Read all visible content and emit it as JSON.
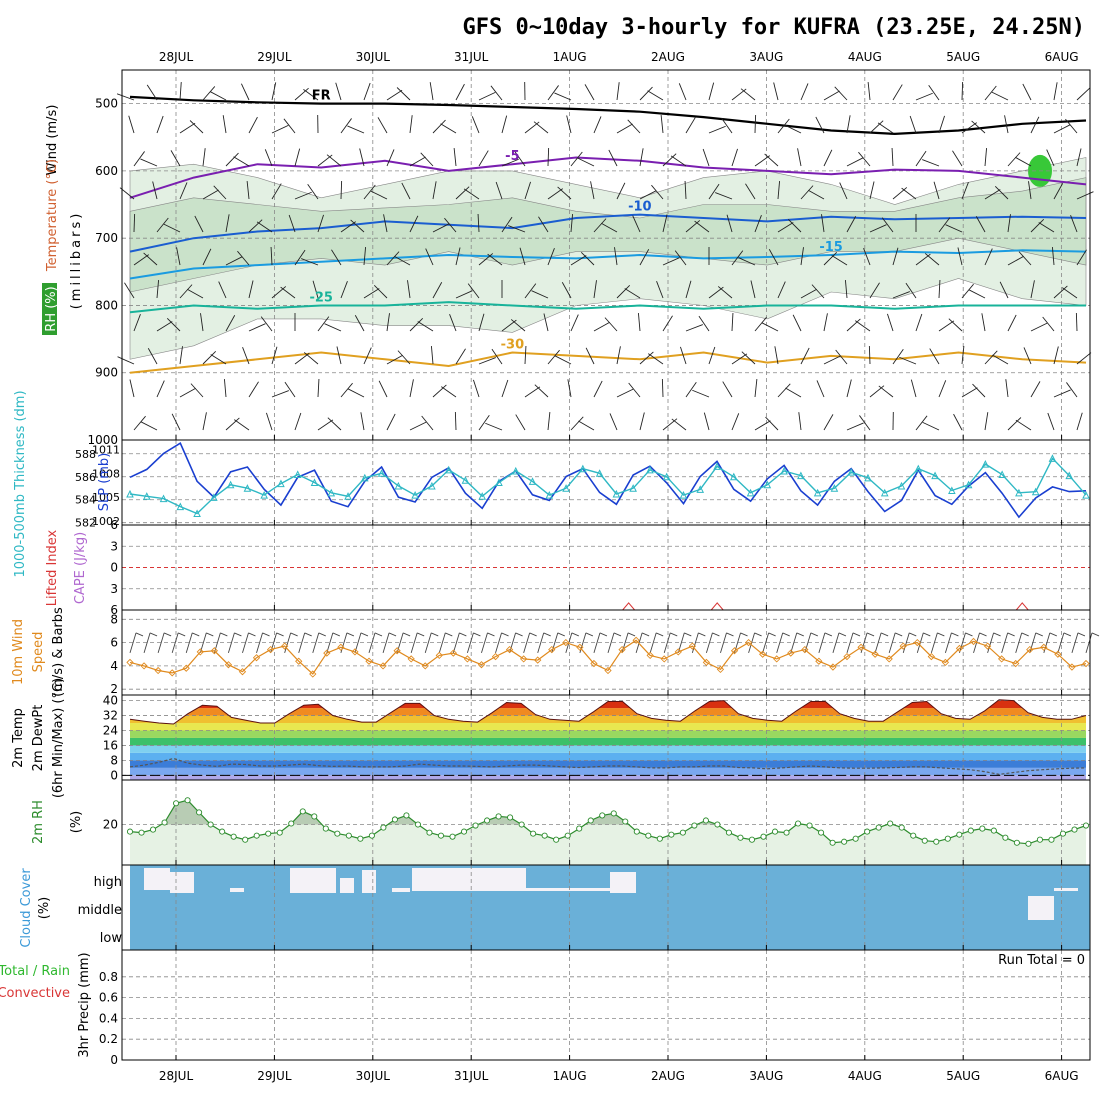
{
  "chart_data": {
    "type": "meteogram",
    "title": "GFS 0~10day 3-hourly for KUFRA (23.25E, 24.25N)",
    "dates": [
      "28JUL",
      "29JUL",
      "30JUL",
      "31JUL",
      "1AUG",
      "2AUG",
      "3AUG",
      "4AUG",
      "5AUG",
      "6AUG"
    ],
    "colors": {
      "rh_fill": "#9bc99b",
      "slp": "#1a3fd0",
      "thickness": "#2fb8c4",
      "wind10": "#e08a1e",
      "cloud": "#6ab0d8",
      "rh2m": "#2d8c2d",
      "temp_warm": "#b01010",
      "temp_cold": "#3b7dd8",
      "lifted_index": "#d93636"
    },
    "panels": {
      "upper_air": {
        "ylabels": [
          "Wind (m/s)",
          "Temperature (°C)",
          "RH (%)",
          "(millibars)"
        ],
        "yticks": [
          500,
          600,
          700,
          800,
          900,
          1000
        ],
        "ylim": [
          1000,
          450
        ],
        "isotherms": [
          {
            "label": "FR",
            "color": "#000000",
            "level_mb": [
              490,
              495,
              498,
              500,
              500,
              502,
              505,
              508,
              512,
              520,
              530,
              540,
              545,
              540,
              530,
              525
            ]
          },
          {
            "label": "-5",
            "color": "#7a1fb0",
            "level_mb": [
              640,
              610,
              590,
              595,
              585,
              600,
              590,
              580,
              585,
              595,
              600,
              605,
              598,
              600,
              610,
              620
            ]
          },
          {
            "label": "-10",
            "color": "#1a5dd0",
            "level_mb": [
              720,
              700,
              690,
              685,
              675,
              680,
              685,
              670,
              665,
              670,
              675,
              668,
              672,
              670,
              668,
              670
            ]
          },
          {
            "label": "-15",
            "color": "#1a9be0",
            "level_mb": [
              760,
              745,
              740,
              735,
              730,
              725,
              728,
              730,
              725,
              730,
              728,
              725,
              720,
              722,
              718,
              720
            ]
          },
          {
            "label": "-25",
            "color": "#18b39a",
            "level_mb": [
              810,
              800,
              805,
              800,
              800,
              795,
              800,
              805,
              800,
              805,
              800,
              800,
              805,
              800,
              800,
              800
            ]
          },
          {
            "label": "-30",
            "color": "#e0a020",
            "level_mb": [
              900,
              890,
              880,
              870,
              880,
              890,
              870,
              875,
              880,
              870,
              885,
              875,
              880,
              870,
              880,
              885
            ]
          }
        ],
        "annotations": [
          "FR",
          "-5",
          "-10",
          "-15",
          "-25",
          "-30"
        ]
      },
      "slp_thickness": {
        "ylabels": [
          "1000-500mb Thickness (dm)",
          "SLP (mb)"
        ],
        "left_ticks": [
          582,
          584,
          586,
          588
        ],
        "right_ticks": [
          1002,
          1005,
          1008,
          1011
        ],
        "slp": [
          1007.5,
          1008.5,
          1010.5,
          1011.8,
          1007.0,
          1005.0,
          1008.2,
          1008.8,
          1006.0,
          1004.0,
          1007.5,
          1008.4,
          1004.5,
          1003.8,
          1007.0,
          1008.8,
          1005.0,
          1004.4,
          1007.5,
          1008.7,
          1005.5,
          1003.6,
          1007.0,
          1008.3,
          1005.3,
          1004.6,
          1007.6,
          1008.6,
          1005.6,
          1004.1,
          1007.8,
          1008.9,
          1006.8,
          1004.2,
          1007.6,
          1009.5,
          1006.0,
          1004.5,
          1007.3,
          1009.0,
          1005.8,
          1004.0,
          1007.0,
          1008.6,
          1005.7,
          1003.2,
          1004.6,
          1008.4,
          1005.2,
          1004.1,
          1006.4,
          1008.1,
          1005.5,
          1002.5,
          1004.9,
          1006.3,
          1005.7,
          1005.8
        ],
        "thickness": [
          584.5,
          584.3,
          584.1,
          583.4,
          582.8,
          584.2,
          585.3,
          585.0,
          584.4,
          585.4,
          586.2,
          585.5,
          584.6,
          584.3,
          585.9,
          586.3,
          585.2,
          584.4,
          585.2,
          586.6,
          585.7,
          584.3,
          585.5,
          586.5,
          585.6,
          584.4,
          585.0,
          586.7,
          586.3,
          584.5,
          585.0,
          586.6,
          586.0,
          584.4,
          584.9,
          586.9,
          586.0,
          584.6,
          585.3,
          586.5,
          586.1,
          584.6,
          585.0,
          586.4,
          585.9,
          584.6,
          585.2,
          586.7,
          586.1,
          584.8,
          585.3,
          587.1,
          586.2,
          584.6,
          584.7,
          587.6,
          586.1,
          584.4
        ]
      },
      "cape_li": {
        "ylabels": [
          "Lifted Index",
          "CAPE (J/kg)"
        ],
        "yticks": [
          -6,
          -3,
          0,
          3,
          6
        ],
        "lifted_index_zero": 0,
        "cape_spikes": [
          {
            "date_index": 4.6,
            "value": 5
          },
          {
            "date_index": 5.5,
            "value": 5
          },
          {
            "date_index": 8.6,
            "value": 5
          }
        ]
      },
      "wind10m": {
        "ylabels": [
          "10m Wind",
          "Speed",
          "(m/s) & Barbs"
        ],
        "yticks": [
          2,
          4,
          6,
          8
        ],
        "speed": [
          4.3,
          4.0,
          3.6,
          3.4,
          3.8,
          5.2,
          5.3,
          4.1,
          3.5,
          4.7,
          5.4,
          5.7,
          4.4,
          3.3,
          5.1,
          5.6,
          5.2,
          4.4,
          4.0,
          5.3,
          4.6,
          4.0,
          4.9,
          5.1,
          4.6,
          4.1,
          4.8,
          5.4,
          4.6,
          4.5,
          5.4,
          6.0,
          5.6,
          4.2,
          3.6,
          5.4,
          6.2,
          4.9,
          4.6,
          5.2,
          5.7,
          4.3,
          3.7,
          5.3,
          6.0,
          5.0,
          4.6,
          5.1,
          5.4,
          4.4,
          3.9,
          4.8,
          5.6,
          5.0,
          4.6,
          5.7,
          6.0,
          4.8,
          4.3,
          5.5,
          6.1,
          5.7,
          4.6,
          4.2,
          5.4,
          5.6,
          5.0,
          3.9,
          4.2
        ]
      },
      "temp2m": {
        "ylabels": [
          "2m Temp",
          "2m DewPt",
          "(6hr Min/Max) (°C)"
        ],
        "yticks": [
          0,
          8,
          16,
          24,
          32,
          40
        ],
        "temp": [
          30.0,
          29.0,
          28.0,
          27.5,
          33.0,
          37.5,
          37.0,
          31.0,
          29.5,
          28.0,
          28.0,
          33.0,
          37.5,
          38.0,
          32.0,
          30.0,
          28.5,
          28.5,
          33.5,
          38.5,
          38.5,
          32.0,
          30.0,
          29.0,
          28.5,
          33.5,
          39.0,
          38.5,
          32.5,
          30.0,
          29.5,
          29.0,
          34.0,
          39.5,
          39.5,
          33.0,
          30.5,
          29.5,
          29.0,
          34.5,
          39.5,
          40.0,
          33.0,
          30.5,
          29.5,
          29.0,
          34.5,
          39.5,
          39.5,
          33.0,
          30.5,
          29.0,
          29.0,
          34.0,
          39.0,
          39.5,
          33.0,
          30.5,
          30.0,
          34.5,
          40.5,
          40.0,
          33.5,
          31.0,
          30.0,
          30.0,
          32.0
        ],
        "dewpt": [
          4.5,
          5.5,
          7.0,
          9.0,
          6.5,
          5.5,
          4.8,
          6.0,
          5.8,
          5.0,
          5.0,
          5.5,
          6.0,
          5.2,
          4.8,
          5.0,
          4.5,
          4.5,
          4.5,
          5.0,
          6.0,
          5.5,
          5.0,
          5.0,
          4.8,
          4.5,
          5.0,
          5.5,
          5.5,
          5.0,
          4.5,
          4.2,
          4.5,
          5.0,
          5.0,
          4.5,
          4.0,
          4.0,
          4.5,
          4.5,
          5.0,
          5.0,
          4.2,
          4.0,
          3.5,
          4.0,
          4.5,
          5.0,
          4.5,
          4.0,
          3.8,
          3.8,
          4.0,
          4.2,
          4.5,
          4.5,
          4.0,
          3.5,
          3.0,
          2.0,
          0.5,
          1.5,
          2.5,
          3.0,
          3.5,
          3.8,
          4.0
        ]
      },
      "rh2m": {
        "ylabels": [
          "2m RH",
          "(%)"
        ],
        "yticks": [
          20
        ],
        "ylim": [
          0,
          42
        ],
        "rh": [
          16.5,
          16.0,
          17.5,
          21.0,
          30.5,
          32.0,
          26.0,
          20.0,
          16.5,
          14.0,
          12.5,
          14.5,
          15.5,
          16.0,
          20.5,
          26.5,
          24.0,
          18.0,
          15.5,
          14.5,
          13.0,
          14.5,
          18.5,
          22.5,
          24.5,
          20.0,
          16.0,
          14.5,
          14.0,
          16.5,
          19.5,
          22.0,
          24.0,
          23.5,
          20.0,
          15.5,
          14.5,
          12.5,
          14.5,
          18.0,
          22.0,
          24.5,
          25.5,
          21.5,
          16.5,
          14.5,
          13.0,
          15.0,
          16.0,
          19.5,
          22.0,
          20.0,
          16.0,
          13.5,
          12.5,
          14.0,
          16.5,
          16.0,
          20.5,
          19.5,
          16.0,
          11.0,
          11.5,
          13.0,
          16.5,
          18.5,
          20.5,
          18.5,
          14.5,
          12.0,
          11.5,
          13.0,
          15.0,
          17.0,
          18.0,
          17.0,
          13.5,
          11.0,
          10.5,
          12.5,
          12.5,
          15.5,
          17.5,
          19.5
        ]
      },
      "cloud": {
        "ylabels": [
          "Cloud Cover",
          "(%)"
        ],
        "levels": [
          "high",
          "middle",
          "low"
        ]
      },
      "precip": {
        "ylabels": [
          "3hr Precip (mm)",
          "Total / Rain",
          "Convective"
        ],
        "yticks": [
          0,
          0.2,
          0.4,
          0.6,
          0.8
        ],
        "ylim": [
          0,
          1
        ],
        "run_total_label": "Run Total = 0"
      }
    }
  }
}
